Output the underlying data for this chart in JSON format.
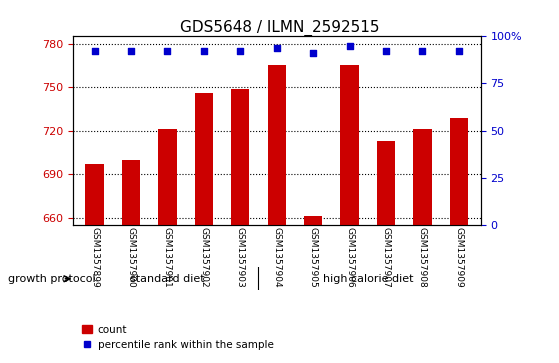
{
  "title": "GDS5648 / ILMN_2592515",
  "samples": [
    "GSM1357899",
    "GSM1357900",
    "GSM1357901",
    "GSM1357902",
    "GSM1357903",
    "GSM1357904",
    "GSM1357905",
    "GSM1357906",
    "GSM1357907",
    "GSM1357908",
    "GSM1357909"
  ],
  "counts": [
    697,
    700,
    721,
    746,
    749,
    765,
    661,
    765,
    713,
    721,
    729
  ],
  "percentiles": [
    92,
    92,
    92,
    92,
    92,
    94,
    91,
    95,
    92,
    92,
    92
  ],
  "ylim_left": [
    655,
    785
  ],
  "ylim_right": [
    0,
    100
  ],
  "yticks_left": [
    660,
    690,
    720,
    750,
    780
  ],
  "yticks_right": [
    0,
    25,
    50,
    75,
    100
  ],
  "bar_color": "#cc0000",
  "dot_color": "#0000cc",
  "group1_label": "standard diet",
  "group2_label": "high calorie diet",
  "group1_indices": [
    0,
    1,
    2,
    3,
    4
  ],
  "group2_indices": [
    5,
    6,
    7,
    8,
    9,
    10
  ],
  "group_bar_color": "#66cc66",
  "growth_protocol_label": "growth protocol",
  "legend_count_label": "count",
  "legend_percentile_label": "percentile rank within the sample"
}
